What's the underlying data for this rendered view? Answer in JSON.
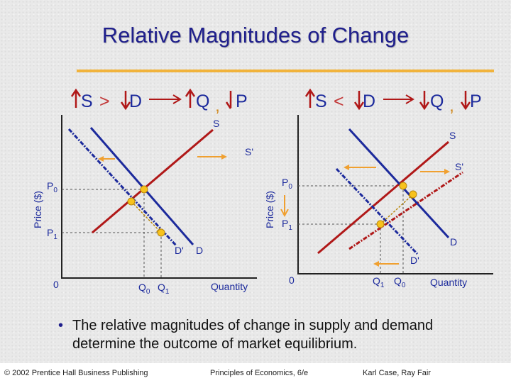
{
  "slide": {
    "title": "Relative Magnitudes of Change",
    "bullet": "The relative magnitudes of change in supply and demand determine the outcome of market equilibrium.",
    "footer": {
      "copyright": "© 2002 Prentice Hall Business Publishing",
      "book": "Principles of Economics, 6/e",
      "authors": "Karl Case, Ray Fair"
    }
  },
  "colors": {
    "title": "#1f1f8c",
    "supply": "#b01818",
    "demand": "#1c2a9c",
    "arrow": "#f0a030",
    "equilibrium_dot": "#f7c21c",
    "rule": "#f1b33c"
  },
  "left_graph": {
    "header": {
      "s": "S",
      "rel": ">",
      "d": "D",
      "q": "Q",
      "sep": ",",
      "p": "P"
    },
    "ylabel": "Price ($)",
    "xlabel": "Quantity",
    "origin": "0",
    "p0": "P0",
    "p1": "P1",
    "q0": "Q0",
    "q1": "Q1",
    "labels": {
      "S": "S",
      "S_prime": "S'",
      "D": "D",
      "D_prime": "D'"
    }
  },
  "right_graph": {
    "header": {
      "s": "S",
      "rel": "<",
      "d": "D",
      "q": "Q",
      "sep": ",",
      "p": "P"
    },
    "ylabel": "Price ($)",
    "xlabel": "Quantity",
    "origin": "0",
    "p0": "P0",
    "p1": "P1",
    "q1": "Q1",
    "q0": "Q0",
    "labels": {
      "S": "S",
      "S_prime": "S'",
      "D": "D",
      "D_prime": "D'"
    }
  }
}
